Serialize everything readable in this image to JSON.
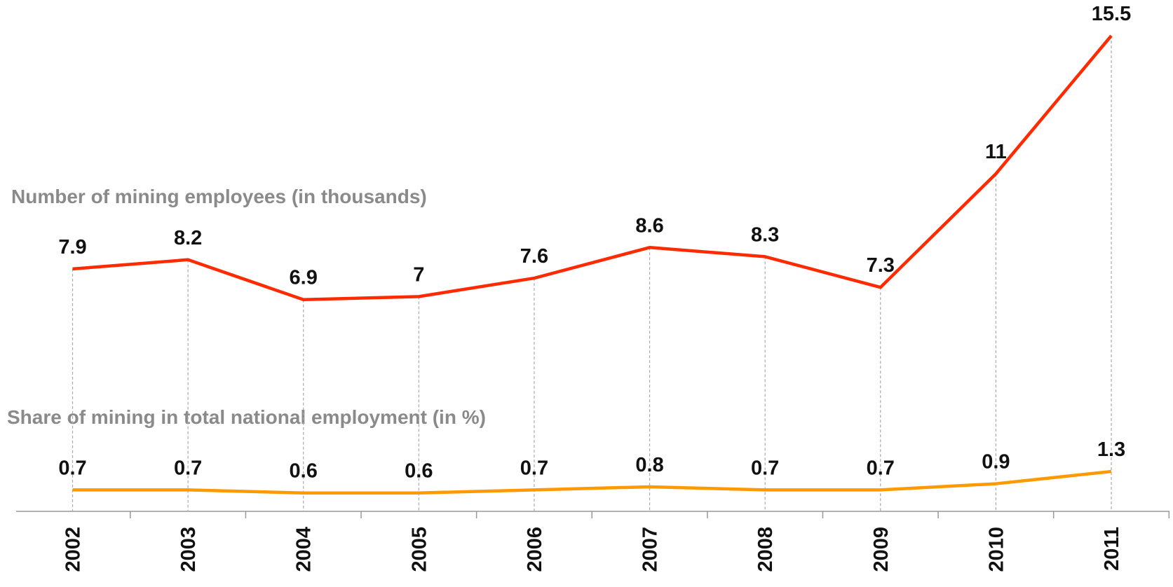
{
  "chart_data": {
    "type": "line",
    "categories": [
      "2002",
      "2003",
      "2004",
      "2005",
      "2006",
      "2007",
      "2008",
      "2009",
      "2010",
      "2011"
    ],
    "series": [
      {
        "name": "Number of mining employees (in thousands)",
        "color": "#ff2a00",
        "values": [
          7.9,
          8.2,
          6.9,
          7,
          7.6,
          8.6,
          8.3,
          7.3,
          11,
          15.5
        ]
      },
      {
        "name": "Share of mining in total national employment (in %)",
        "color": "#ff9900",
        "values": [
          0.7,
          0.7,
          0.6,
          0.6,
          0.7,
          0.8,
          0.7,
          0.7,
          0.9,
          1.3
        ]
      }
    ]
  }
}
